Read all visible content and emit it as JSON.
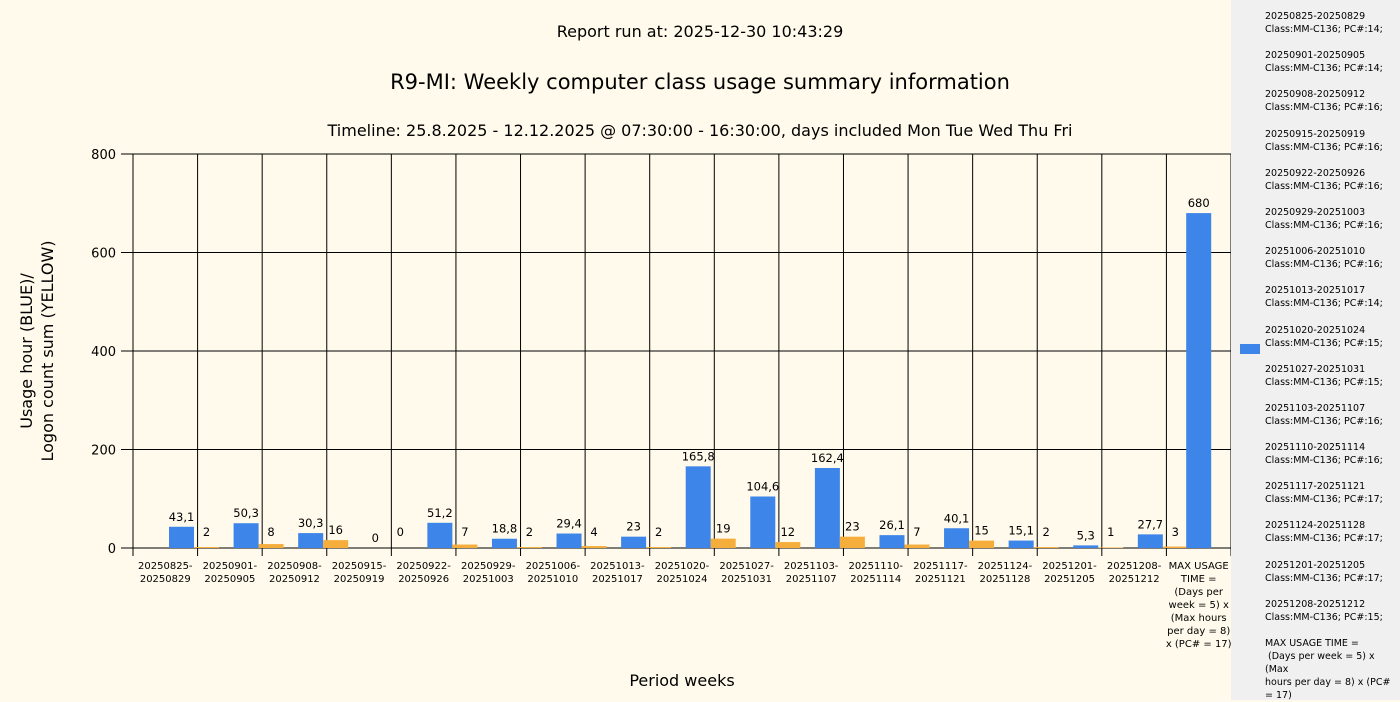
{
  "report_run": "Report run at: 2025-12-30 10:43:29",
  "title": "R9-MI: Weekly computer class usage summary information",
  "timeline": "Timeline:  25.8.2025  - 12.12.2025  @  07:30:00 -  16:30:00, days included Mon Tue Wed Thu Fri",
  "colors": {
    "usage": "#3d85e8",
    "logon": "#f5ae3c",
    "background": "#fffaeb",
    "legend_bg": "#f0f0f0"
  },
  "chart_data": {
    "type": "bar",
    "title": "R9-MI: Weekly computer class usage summary information",
    "xlabel": "Period weeks",
    "ylabel_lines": [
      "Usage hour (BLUE)/",
      "Logon count sum (YELLOW)"
    ],
    "ylim": [
      0,
      800
    ],
    "yticks": [
      0,
      200,
      400,
      600,
      800
    ],
    "grid": true,
    "categories": [
      "20250825-\n20250829",
      "20250901-\n20250905",
      "20250908-\n20250912",
      "20250915-\n20250919",
      "20250922-\n20250926",
      "20250929-\n20251003",
      "20251006-\n20251010",
      "20251013-\n20251017",
      "20251020-\n20251024",
      "20251027-\n20251031",
      "20251103-\n20251107",
      "20251110-\n20251114",
      "20251117-\n20251121",
      "20251124-\n20251128",
      "20251201-\n20251205",
      "20251208-\n20251212",
      "MAX USAGE\nTIME =\n(Days per\nweek = 5) x\n(Max hours\nper day = 8)\nx (PC# = 17)"
    ],
    "series": [
      {
        "name": "Usage hour",
        "color": "#3d85e8",
        "values": [
          43.1,
          50.3,
          30.3,
          0,
          51.2,
          18.8,
          29.4,
          23,
          165.8,
          104.6,
          162.4,
          26.1,
          40.1,
          15.1,
          5.3,
          27.7,
          680
        ],
        "labels": [
          "43,1",
          "50,3",
          "30,3",
          "0",
          "51,2",
          "18,8",
          "29,4",
          "23",
          "165,8",
          "104,6",
          "162,4",
          "26,1",
          "40,1",
          "15,1",
          "5,3",
          "27,7",
          "680"
        ]
      },
      {
        "name": "Logon count sum",
        "color": "#f5ae3c",
        "values": [
          2,
          8,
          16,
          0,
          7,
          2,
          4,
          2,
          19,
          12,
          23,
          7,
          15,
          2,
          1,
          3,
          null
        ],
        "labels": [
          "2",
          "8",
          "16",
          "0",
          "7",
          "2",
          "4",
          "2",
          "19",
          "12",
          "23",
          "7",
          "15",
          "2",
          "1",
          "3",
          ""
        ]
      }
    ]
  },
  "legend": {
    "entries": [
      "20250825-20250829\nClass:MM-C136; PC#:14;",
      "20250901-20250905\nClass:MM-C136; PC#:14;",
      "20250908-20250912\nClass:MM-C136; PC#:16;",
      "20250915-20250919\nClass:MM-C136; PC#:16;",
      "20250922-20250926\nClass:MM-C136; PC#:16;",
      "20250929-20251003\nClass:MM-C136; PC#:16;",
      "20251006-20251010\nClass:MM-C136; PC#:16;",
      "20251013-20251017\nClass:MM-C136; PC#:14;",
      "20251020-20251024\nClass:MM-C136; PC#:15;",
      "20251027-20251031\nClass:MM-C136; PC#:15;",
      "20251103-20251107\nClass:MM-C136; PC#:16;",
      "20251110-20251114\nClass:MM-C136; PC#:16;",
      "20251117-20251121\nClass:MM-C136; PC#:17;",
      "20251124-20251128\nClass:MM-C136; PC#:17;",
      "20251201-20251205\nClass:MM-C136; PC#:17;",
      "20251208-20251212\nClass:MM-C136; PC#:15;",
      "MAX USAGE TIME =\n (Days per week = 5) x (Max\nhours per day = 8) x (PC#\n= 17)"
    ]
  }
}
